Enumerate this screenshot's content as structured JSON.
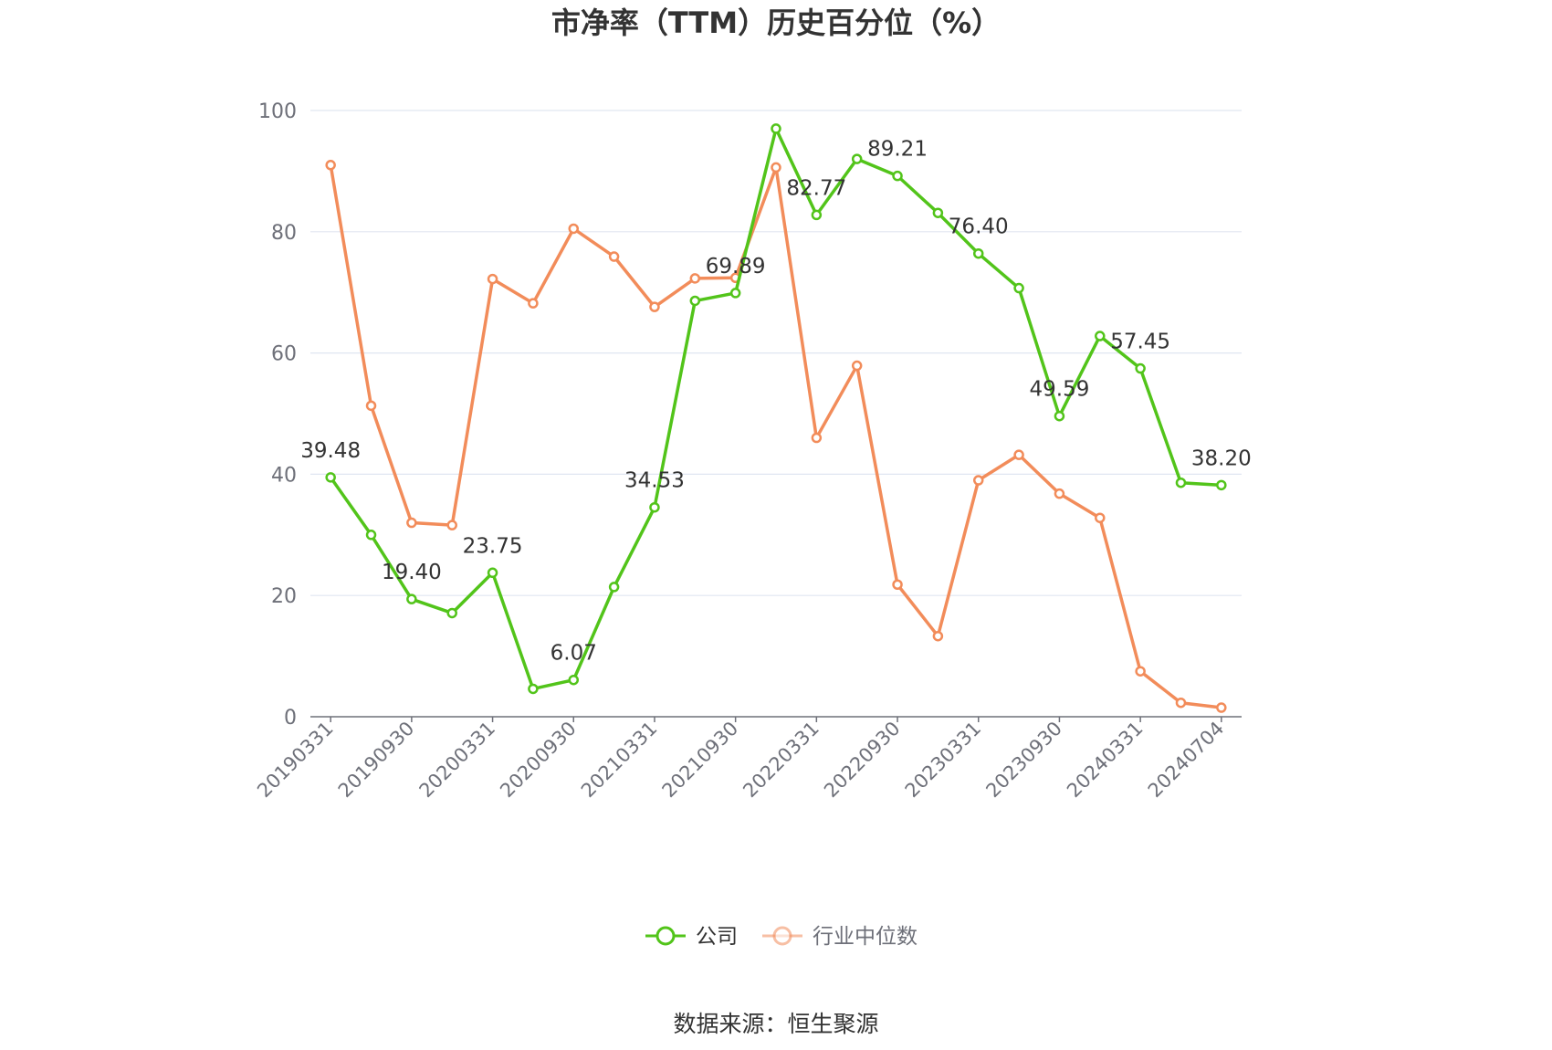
{
  "chart_data": {
    "type": "line",
    "title": "市净率（TTM）历史百分位（%）",
    "xlabel": "",
    "ylabel": "",
    "ylim": [
      0,
      100
    ],
    "yticks": [
      0,
      20,
      40,
      60,
      80,
      100
    ],
    "grid": true,
    "legend_position": "bottom",
    "x": [
      "20190331",
      "20190630",
      "20190930",
      "20191231",
      "20200331",
      "20200630",
      "20200930",
      "20201231",
      "20210331",
      "20210630",
      "20210930",
      "20211231",
      "20220331",
      "20220630",
      "20220930",
      "20221231",
      "20230331",
      "20230630",
      "20230930",
      "20231231",
      "20240331",
      "20240630",
      "20240704"
    ],
    "xtick_labels": [
      "20190331",
      "20190930",
      "20200331",
      "20200930",
      "20210331",
      "20210930",
      "20220331",
      "20220930",
      "20230331",
      "20230930",
      "20240331",
      "20240704"
    ],
    "series": [
      {
        "name": "公司",
        "color": "#52c41a",
        "values": [
          39.48,
          30.0,
          19.4,
          17.1,
          23.75,
          4.6,
          6.07,
          21.4,
          34.53,
          68.6,
          69.89,
          97.0,
          82.77,
          92.0,
          89.21,
          83.1,
          76.4,
          70.7,
          49.59,
          62.8,
          57.45,
          38.6,
          38.2
        ],
        "labels": [
          "39.48",
          "",
          "19.40",
          "",
          "23.75",
          "",
          "6.07",
          "",
          "34.53",
          "",
          "69.89",
          "",
          "82.77",
          "",
          "89.21",
          "",
          "76.40",
          "",
          "49.59",
          "",
          "57.45",
          "",
          "38.20"
        ]
      },
      {
        "name": "行业中位数",
        "color": "#f28c5a",
        "values": [
          91.0,
          51.3,
          32.0,
          31.6,
          72.2,
          68.2,
          80.5,
          75.9,
          67.6,
          72.3,
          72.4,
          90.6,
          46.0,
          57.9,
          21.8,
          13.3,
          39.0,
          43.2,
          36.8,
          32.8,
          7.5,
          2.3,
          1.5
        ]
      }
    ],
    "source": "数据来源：恒生聚源"
  }
}
